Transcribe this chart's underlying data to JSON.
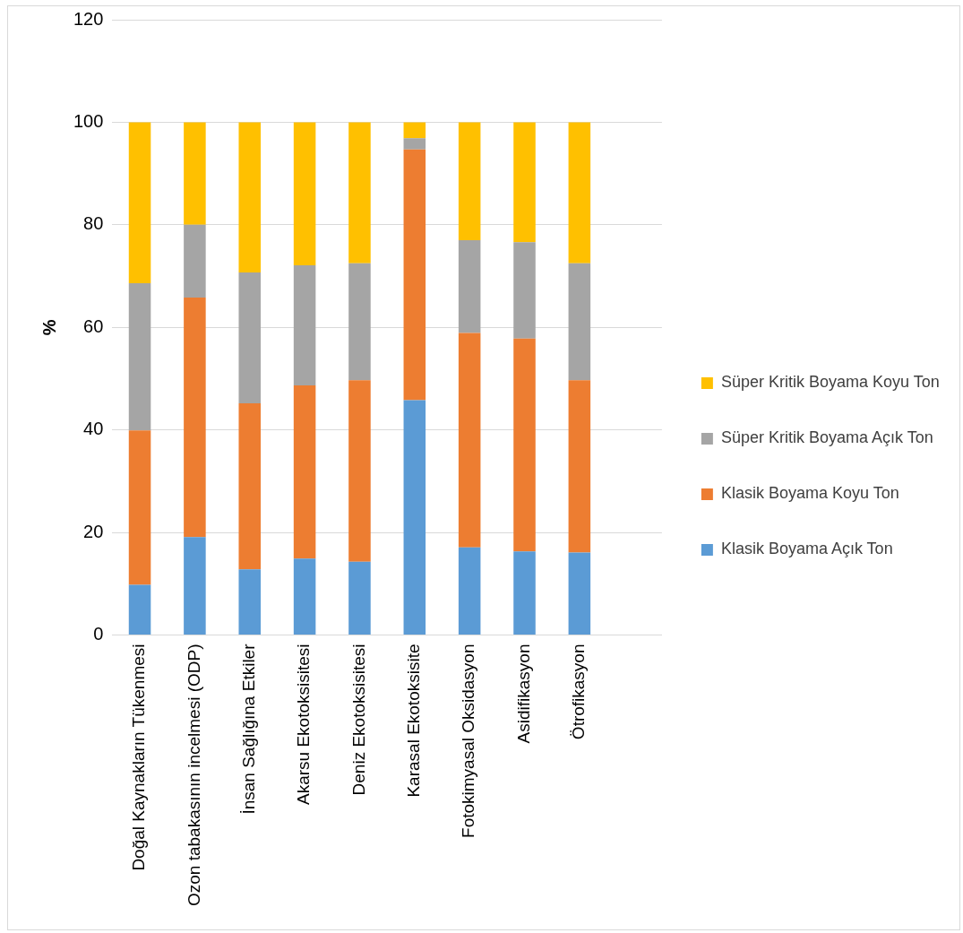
{
  "chart_data": {
    "type": "bar",
    "stacked": true,
    "ylabel": "%",
    "ylim": [
      0,
      120
    ],
    "yticks": [
      0,
      20,
      40,
      60,
      80,
      100,
      120
    ],
    "grid": "y",
    "legend": "right",
    "categories": [
      "Doğal Kaynakların Tükenmesi",
      "Ozon tabakasının incelmesi (ODP)",
      "İnsan Sağlığına Etkiler",
      "Akarsu Ekotoksisitesi",
      "Deniz Ekotoksisitesi",
      "Karasal Ekotoksisite",
      "Fotokimyasal Oksidasyon",
      "Asidifikasyon",
      "Ötrofikasyon",
      null
    ],
    "series": [
      {
        "name": "Klasik Boyama Açık Ton",
        "color": "#5b9bd5",
        "values": [
          9.8,
          19.1,
          12.8,
          14.9,
          14.3,
          45.8,
          17.1,
          16.3,
          16.1,
          null
        ]
      },
      {
        "name": "Klasik Boyama Koyu Ton",
        "color": "#ed7d31",
        "values": [
          30.1,
          46.7,
          32.4,
          33.8,
          35.4,
          48.9,
          41.8,
          41.5,
          33.6,
          null
        ]
      },
      {
        "name": "Süper Kritik Boyama Açık Ton",
        "color": "#a5a5a5",
        "values": [
          28.7,
          14.2,
          25.5,
          23.4,
          22.8,
          2.2,
          18.1,
          18.8,
          22.8,
          null
        ]
      },
      {
        "name": "Süper Kritik Boyama Koyu Ton",
        "color": "#ffc000",
        "values": [
          31.4,
          20.0,
          29.3,
          27.9,
          27.5,
          3.1,
          23.0,
          23.4,
          27.5,
          null
        ]
      }
    ]
  }
}
